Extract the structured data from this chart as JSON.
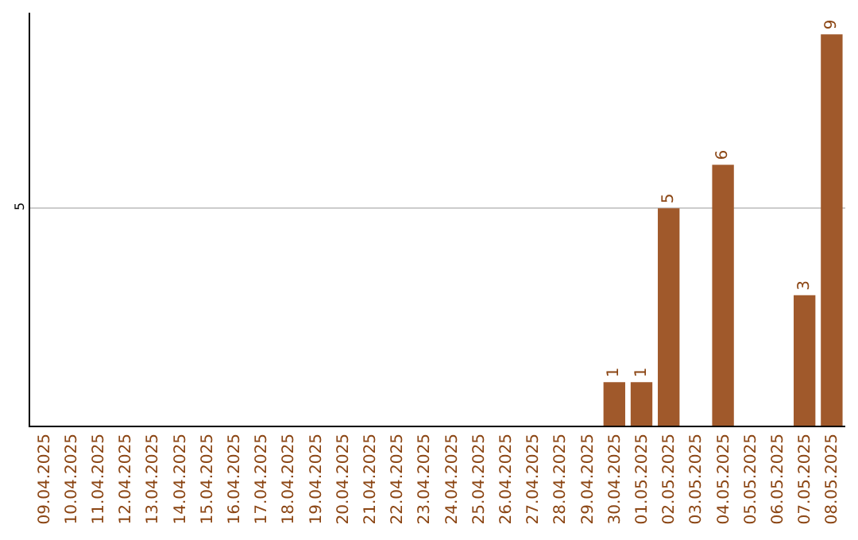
{
  "chart_data": {
    "type": "bar",
    "categories": [
      "09.04.2025",
      "10.04.2025",
      "11.04.2025",
      "12.04.2025",
      "13.04.2025",
      "14.04.2025",
      "15.04.2025",
      "16.04.2025",
      "17.04.2025",
      "18.04.2025",
      "19.04.2025",
      "20.04.2025",
      "21.04.2025",
      "22.04.2025",
      "23.04.2025",
      "24.04.2025",
      "25.04.2025",
      "26.04.2025",
      "27.04.2025",
      "28.04.2025",
      "29.04.2025",
      "30.04.2025",
      "01.05.2025",
      "02.05.2025",
      "03.05.2025",
      "04.05.2025",
      "05.05.2025",
      "06.05.2025",
      "07.05.2025",
      "08.05.2025"
    ],
    "values": [
      null,
      null,
      null,
      null,
      null,
      null,
      null,
      null,
      null,
      null,
      null,
      null,
      null,
      null,
      null,
      null,
      null,
      null,
      null,
      null,
      null,
      1,
      1,
      5,
      null,
      6,
      null,
      null,
      3,
      9
    ],
    "value_labels": [
      null,
      null,
      null,
      null,
      null,
      null,
      null,
      null,
      null,
      null,
      null,
      null,
      null,
      null,
      null,
      null,
      null,
      null,
      null,
      null,
      null,
      "1",
      "1",
      "5",
      null,
      "6",
      null,
      null,
      "3",
      "9"
    ],
    "color": "#a0592b",
    "ylim": [
      0,
      9.5
    ],
    "yticks": [
      5
    ],
    "grid": "y",
    "legend": false
  }
}
